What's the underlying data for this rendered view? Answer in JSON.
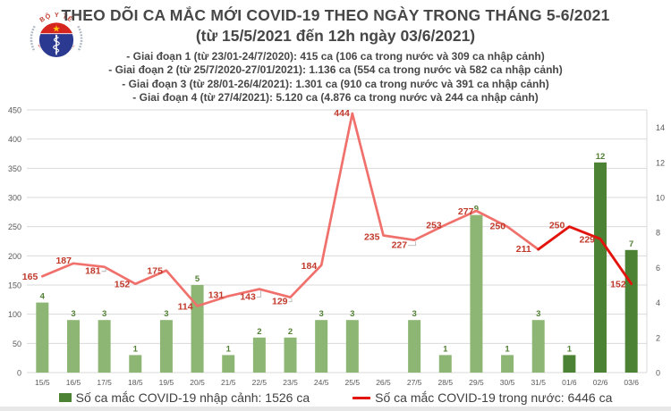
{
  "header": {
    "logo": {
      "top_text": "BỘ Y TẾ",
      "bottom_text": "MINISTRY OF HEALTH"
    },
    "title_line1": "THEO DÕI CA MẮC MỚI COVID-19 THEO NGÀY TRONG THÁNG 5-6/2021",
    "title_line2": "(từ 15/5/2021 đến 12h ngày 03/6/2021)",
    "bullets": [
      "- Giai đoạn 1 (từ 23/01-24/7/2020): 415 ca (106 ca trong nước và 309 ca nhập cảnh)",
      "- Giai đoạn 2 (từ 25/7/2020-27/01/2021): 1.136 ca (554 ca trong nước và 582 ca nhập cảnh)",
      "- Giai đoạn 3 (từ 28/01-26/4/2021): 1.301 ca (910 ca trong nước và 391 ca nhập cảnh)",
      "- Giai đoạn 4 (từ 27/4/2021): 5.120 ca (4.876 ca trong nước và 244 ca nhập cảnh)"
    ]
  },
  "chart_data": {
    "type": "bar+line",
    "title": "THEO DÕI CA MẮC MỚI COVID-19 THEO NGÀY TRONG THÁNG 5-6/2021",
    "subtitle": "(từ 15/5/2021 đến 12h ngày 03/6/2021)",
    "categories": [
      "15/5",
      "16/5",
      "17/5",
      "18/5",
      "19/5",
      "20/5",
      "21/5",
      "22/5",
      "23/5",
      "24/5",
      "25/5",
      "26/5",
      "27/5",
      "28/5",
      "29/5",
      "30/5",
      "31/5",
      "01/6",
      "02/6",
      "03/6"
    ],
    "series": [
      {
        "name": "Số ca mắc COVID-19 nhập cảnh",
        "type": "bar",
        "axis": "right",
        "values": [
          4,
          3,
          3,
          1,
          3,
          5,
          1,
          2,
          2,
          3,
          3,
          0,
          3,
          1,
          9,
          1,
          3,
          1,
          12,
          7
        ],
        "color": "#8DB573",
        "highlight_color": "#4C8233",
        "highlight_from_index": 17,
        "label_color": "#538135"
      },
      {
        "name": "Số ca mắc COVID-19 trong nước",
        "type": "line",
        "axis": "left",
        "values": [
          165,
          187,
          181,
          152,
          175,
          114,
          131,
          143,
          129,
          184,
          444,
          235,
          227,
          253,
          277,
          250,
          211,
          250,
          229,
          152
        ],
        "color": "#F0706C",
        "highlight_color": "#E3140D",
        "highlight_from_index": 16,
        "label_color": "#C0392B",
        "label_offsets": [
          [
            -5,
            4
          ],
          [
            -2,
            0
          ],
          [
            -4,
            8
          ],
          [
            -6,
            4
          ],
          [
            -4,
            4
          ],
          [
            -5,
            4
          ],
          [
            -5,
            2
          ],
          [
            -4,
            12
          ],
          [
            -3,
            8
          ],
          [
            -5,
            4
          ],
          [
            -3,
            3
          ],
          [
            -4,
            5
          ],
          [
            -8,
            9
          ],
          [
            -4,
            4
          ],
          [
            -3,
            4
          ],
          [
            -2,
            3
          ],
          [
            -8,
            3
          ],
          [
            -5,
            2
          ],
          [
            -6,
            4
          ],
          [
            -6,
            4
          ]
        ],
        "callout_indices": [
          2,
          7,
          8,
          12
        ]
      }
    ],
    "left_axis": {
      "min": 0,
      "max": 450,
      "step": 50
    },
    "right_axis": {
      "min": 0,
      "max": 15,
      "step": 2,
      "top_label": 14
    },
    "grid": true,
    "legend_position": "bottom",
    "legend": [
      {
        "marker": "square",
        "color": "#4C8233",
        "label": "Số ca mắc COVID-19 nhập cảnh: 1526 ca"
      },
      {
        "marker": "line",
        "color": "#E3140D",
        "label": "Số ca mắc COVID-19 trong nước: 6446 ca"
      }
    ],
    "colors": {
      "grid": "#D9D9D9",
      "axis_text": "#595959"
    }
  }
}
